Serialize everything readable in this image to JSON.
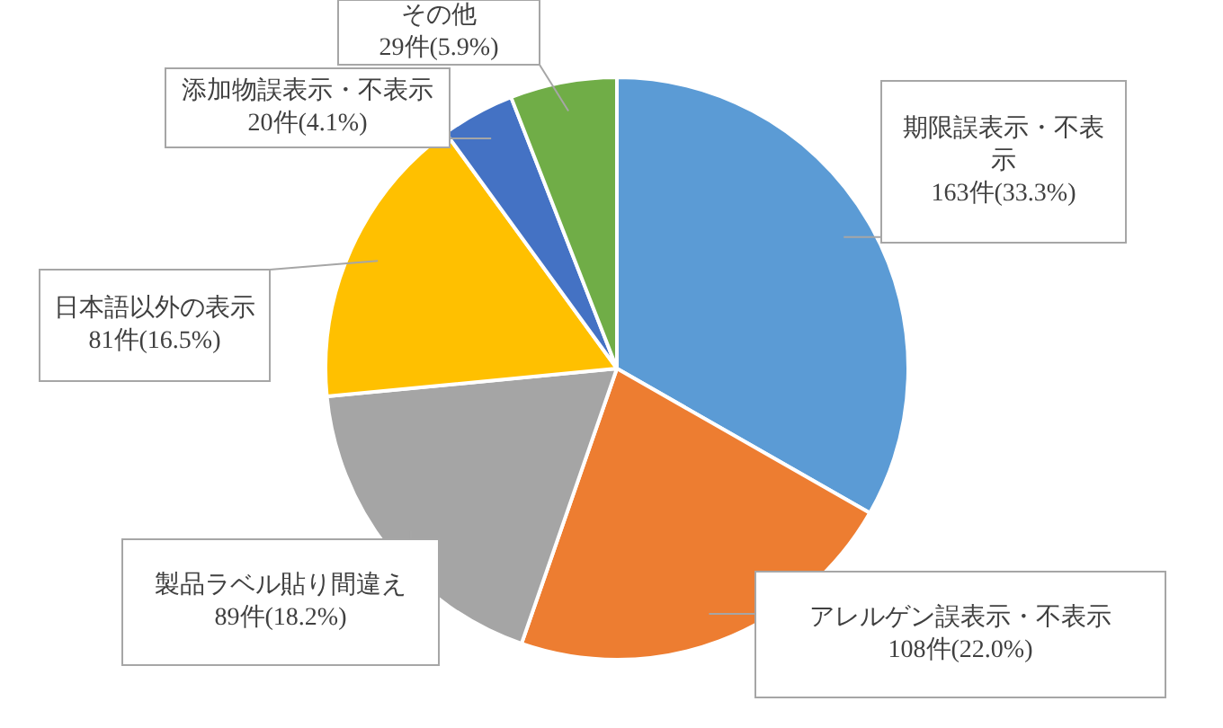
{
  "chart_data": {
    "type": "pie",
    "categories": [
      "期限誤表示・不表示",
      "アレルゲン誤表示・不表示",
      "製品ラベル貼り間違え",
      "日本語以外の表示",
      "添加物誤表示・不表示",
      "その他"
    ],
    "values": [
      163,
      108,
      89,
      81,
      20,
      29
    ],
    "value_labels": [
      "163件(33.3%)",
      "108件(22.0%)",
      "89件(18.2%)",
      "81件(16.5%)",
      "20件(4.1%)",
      "29件(5.9%)"
    ],
    "colors": [
      "#5b9bd5",
      "#ed7d31",
      "#a5a5a5",
      "#ffc000",
      "#4472c4",
      "#70ad47"
    ]
  }
}
